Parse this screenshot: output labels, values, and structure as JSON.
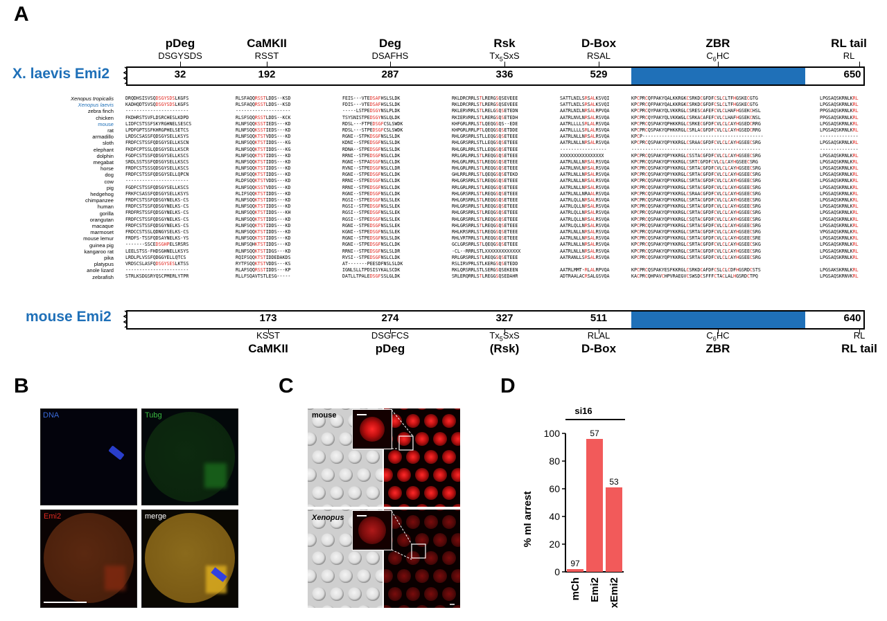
{
  "panels": {
    "a": "A",
    "b": "B",
    "c": "C",
    "d": "D"
  },
  "top_protein": {
    "label": "X. laevis Emi2",
    "domains": [
      {
        "name": "pDeg",
        "motif": "DSGYSDS",
        "pos": "32"
      },
      {
        "name": "CaMKII",
        "motif": "RSST",
        "pos": "192"
      },
      {
        "name": "Deg",
        "motif": "DSAFHS",
        "pos": "287"
      },
      {
        "name": "Rsk",
        "motif": "Tx5SxS",
        "pos": "336"
      },
      {
        "name": "D-Box",
        "motif": "RSAL",
        "pos": "529"
      },
      {
        "name": "ZBR",
        "motif": "C6HC",
        "pos": ""
      },
      {
        "name": "RL tail",
        "motif": "RL",
        "pos": "650"
      }
    ]
  },
  "bottom_protein": {
    "label": "mouse Emi2",
    "domains": [
      {
        "name": "CaMKII",
        "motif": "KSST",
        "pos": "173"
      },
      {
        "name": "pDeg",
        "motif": "DSGFCS",
        "pos": "274"
      },
      {
        "name": "(Rsk)",
        "motif": "Tx5SxS",
        "pos": "327"
      },
      {
        "name": "D-Box",
        "motif": "RLAL",
        "pos": "511"
      },
      {
        "name": "ZBR",
        "motif": "C6HC",
        "pos": ""
      },
      {
        "name": "RL tail",
        "motif": "RL",
        "pos": "640"
      }
    ]
  },
  "alignment": {
    "species": [
      "Xenopus tropicalis",
      "Xenopus laevis",
      "zebra finch",
      "chicken",
      "mouse",
      "rat",
      "armadillo",
      "sloth",
      "elephant",
      "dolphin",
      "megabat",
      "horse",
      "dog",
      "cow",
      "pig",
      "hedgehog",
      "chimpanzee",
      "human",
      "gorilla",
      "orangutan",
      "macaque",
      "marmoset",
      "mouse lemur",
      "guinea pig",
      "kangaroo rat",
      "pika",
      "platypus",
      "anole lizard",
      "zebrafish"
    ],
    "blocks": [
      [
        "DRQDHSISVSQDSGYSDSLKGFS",
        "KADHQDTSVSQDSGYSDSLKGFS",
        "-----------------------",
        "FKDHRSTSVFLDSRCHESLKDPD",
        "LIDFCSTSSFSKYRGHNELSESCS",
        "LPDFGPTSSFKHRGPHELSETCS",
        "LRDSCSASSFQDSGYSELLKSYS",
        "FRDFCSTSSFQDSGYSELLKSCN",
        "FKDFCPTSSLQDSGYSELLKSCR",
        "FGDFCSTSSFQDSGYSELLKSCS",
        "SRDLSSTSSFQDSGYSELLKSCS",
        "FRDFCSTSSSQDSGYSELLKSCS",
        "FRDFCSTSSFQDSGYSELLQPCN",
        "-----------------------",
        "FGDFCSTSSFQDSGYSELLKSCS",
        "FRKFCSASSFQDSGYSELLKSYS",
        "FRDFCSTSSFQDSGYNELKS-CS",
        "FRDFCSTSSFQDSGYNELKS-CS",
        "FRDFRSTSSFQDSGYNELKS-CS",
        "FRDFCSTSSFQDSGYNELKS-CS",
        "FRDFCSTSSFQDSGYNELKS-CS",
        "FRDCCSTSSLQDNGYSELKS-CS",
        "FRDFS-TSSFQDSAYNELKS-YS",
        "-------SSCEDSGHPELSRSRS",
        "LEELSTSS-FHDSGHNELLKSYS",
        "LRDLPLVSSFQDGGYELLQTCS",
        "VRDSCSLASFQDSGYSESLKTSS",
        "-----------------------",
        "STRLKSDGSRYQSCPMERLYTPR"
      ],
      [
        "RLSFAQQRSSTLDDS--KSD",
        "RLSFAQQRSSTLDDS--KSD",
        "-------------------- ",
        "RLSFSQQRSSTLDDS--KCK",
        "RLNFSQQKSSTIEDS---KD",
        "RLNFSQQKSSTIEDS---KD",
        "RLNFSQQKTSTVDDS---KD",
        "RLNFSQQKTSTIDDS---KG",
        "RLNFSQQKTSTIDDS---KG",
        "RLNFSQQKTSTIDDS---KD",
        "RLNFSQQKTSTIDDS---KD",
        "RLNFSQQKTSTIDDS---KD",
        "RLNFSQQKTSTIDDS---KD",
        "RLDFSQQKTSTVDDS---KD",
        "RLNFSQQKSSTVDDS---KD",
        "RLIFSQQKTSTIDDS---KD",
        "RLNFSQQKTSTIDDS---KD",
        "RLNFSQQKTSTIDDS---KD",
        "RLNFSQQKTSTIDDS---KH",
        "RLNFSQQKTSTIDDS---KD",
        "RLNFSQQKTSTIDDS---KD",
        "RLNFSQQKTSTIDDS---KD",
        "RLNFSQQKTSTIDDS---KD",
        "RLNFSQHKTSTIDDS---KD",
        "RLNFSQQKTSTIDGS---KD",
        "RQIFSQQKTSTIDDEDAKDS",
        "RYTFSQQKTSTVDDS---KS",
        "RLAFSQQRSSTIDDS---KP",
        "RLLFSQAVTSTLESG-----"
      ],
      [
        "FEIS---VTEDSAFHSLSLDK",
        "FDIS---VTEDSAFHSLSLDK",
        "-----LSTPEDSGYNSLPLDK",
        "TSYSNISTPEDSGYNSLQLDK",
        "RDSL---FTPEDSGFCSLSWDK",
        "RDSL---STPEDSGFCSLSWDK",
        "RGNI--STPKDSGFNSLSLDK",
        "KDNI--STPEDSGFNSLSLDK",
        "RDNA--STPEDSGFNSLSLDK",
        "RRNI--STPEDSGFNSLCLDK",
        "RGNI--STPADSGFNSLCLDK",
        "RVNI--STPEDSGFNSLCLDR",
        "RGNI--STPEDSGFNSLCLDK",
        "RRNI--STPEDSGFNSLCLDK",
        "RRNI--STPEDSGFNSLCLDK",
        "RGNI--STPEDSGFNSLCLDK",
        "RGSI--STPEDSGFNSLSLEK",
        "RGSI--STPEDSGFNSLSLEK",
        "RGSI--STPEDSGFNSLSLEK",
        "RGSI--STPEDSGFNSLSLEK",
        "RGNI--STPEDSGFNSLSLEK",
        "KGNI--STPEDSGFNSLSLEK",
        "RGNI--STPEDSGFNSLSLDK",
        "RGNI--STPEDSGFNSLCLDK",
        "RRNI--STPEDSGFNSLSLDR",
        "RVSI--STPEDSGFNSLCLDK",
        "AT-------PEESDFNSLSLDK",
        "IGNLSLLTPDSISYKALSCDK",
        "DATLLTPALEDSGFSSLGLDK"
      ],
      [
        "RKLDRCRRLSTLRERGSQSEVEEE",
        "RKLDRCRRLSTLRERGSQSEVEEE",
        "RKLERVRRLSTLRELGSQSETEDN",
        "RKIERVRRLSTLRERGSQSETEDH",
        "KHFGRLRRLSTLQEQGSQS--EDE",
        "KHPGRLRRLPTLQEQGSQSETDDE",
        "RHLGRSRRLSTLLEQGSQSETEEE",
        "RHLGRSRRLSTLLEQGSQSETEEE",
        "RHLGRLRRLSTLLEQGSQSETEEE",
        "RRLGRLRRLSTLREQGSQSETEEE",
        "RHLGRLRRLSTLREQGSQSETEEE",
        "RHLGRLRRLSTLREQGSQSETEEE",
        "GHLRRLRRLSTLQEQGSQSETEKD",
        "RHLGRSRRLSTLREQGSQSETEEE",
        "RRLGRLRRLSTLREQGSQSETEEE",
        "RHLGRSRRLSTLREQGSQSETEEE",
        "RHLGRSRRLSTLREQGSQSETEEE",
        "RHLGRSRRLSTLREQGSQSETEEE",
        "RHLGRSRRLSTLREQGSQSETEEE",
        "RHLGRSRRLSTLREQGSQSETEEE",
        "RHLGRSRRLSTLREQGSQSETEEE",
        "RHLKRSRRLSTLREQGSQSETEEE",
        "RHLVRTRRLSTLREQGSQSETEEE",
        "GCLGRSRRLSTLQEQGSQSETEEE",
        "-CL--RRRLSTLXXXXXXXXXXXXX",
        "RRLGRSRRLSTLREQGSQSETEEE",
        "RSLIRVPRLSTLKERGSQSETEDD",
        "RKLQRSRRLSTLSERGSQSEKEEN",
        "SRLERQRRLSTLREGGSQSEDAHR"
      ],
      [
        "SATTLNILSRSALKSVQI",
        "SATTLNILSRSALKSVQI",
        "AATRLNILNRSALRPVQA",
        "AATRLNVLNRSALRSVQA",
        "AATRLLLLSRLALRSVQA",
        "AATRLLLLSRLALRSVQA",
        "AATRLNLLNRSALRSVQA",
        "AATRLNLLNRSALRSVQA",
        "-----------------",
        "XXXXXXXXXXXXXXXX",
        "AATRLNLLNRSALRSVQA",
        "AATRLNVLNRSALRSVQA",
        "AATRLNLLNRSALRSVQA",
        "AATRLNLLNRSALRSVQA",
        "AATRLNLLNRSALRSVQA",
        "AATRLNLLNRAALRSVQA",
        "AATRLQLLNRSALRSVQA",
        "AATRLQLLNRSALRSVQA",
        "AATRLQLLNRSALRSVQA",
        "AATRLQLLNRSALRSVQA",
        "AATRLQLLNRSALRSVQA",
        "AATRLNLLNRSALRSVQA",
        "AATRLNLLNRSALRSVQA",
        "AATRLNLLNRSALRSVQA",
        "AATRLNLLNRSALRSVQA",
        "AATRANLLSRSALRSVQA",
        "",
        "AATRLMMT-RLALRPVQA",
        "ADTRAALACRSALGSVQA"
      ],
      [
        "KPCPRCQFPAKYQALKKRGKCSRKDCGFDFCSLCLTFHGSKECGTG",
        "KPCPRCQFPAKYQALKKRGKCSRKDCGFDFCSLCLTFHGSKECGTG",
        "KPCPRCQYPAKYQLVKKRGLCSRESCAFEFCVLCLHAFHGSEKCHSL",
        "KPCPRCQYPAKYQLVKKWGLCSRKACAFEFCVLCLHAFHGSEKCNSL",
        "KPCPRCQSPAKYQPHKKRGLCSRKECGFDFCVLCLCAYHGSEDCRRG",
        "KPCPRCQSPAKYQPHKKRGLCSRLACGFDFCVLCLCAYHGSEDCRRG",
        "KPCP--------------------------------------------",
        "KPCPRCQSPAKYQPYKKRGLCSRAACGFDFCVLCLCAYHGSEECSRG",
        "-----------------------------------------------",
        "KPCPRCQSPAKYQPYKKRGLCSSTACGFDFCVLCLCAYHGSEECSRG",
        "KPCPRCQSPAKYQPYKKRGLCSRTCGFDFCVLCLCAYHGSEECSRG",
        "KPCPRCQSPAKYQPYKKRGLCSRTACGFDFCVLCLCAYHGSEECSRG",
        "KPCPRCQSPAKYQPYKKRGLCSRTACGFDFCVLCLCAYHGSEECSRG",
        "KPCPRCQSPAKYQPYKKRGLCSRTACGFDFCVLCLCAYHGSEECSRG",
        "KPCPRCQSPAKYQPYKKRGLCSRTACGFDFCVLCLCAYHGSEECSRG",
        "KPCPRCQSPAKYQPYKKRGLCSRAACGFDFCVLCLCAYHGSEECSRG",
        "KPCPRCQSPAKYQPYKKRGLCSRTACGFDFCVLCLCAYHGSEECSRG",
        "KPCPRCQSPAKYQPYKKRGLCSRTACGFDFCVLCLCAYHGSEECSRG",
        "KPCPRCQSPAKYQPYKKRGLCSRTACGFDFCVLCLCAYHGSEECSRG",
        "KPCPRCQSPAKYQPYKKRGLCSQTACGFDFCVLCLCAYHGSEECSRG",
        "KPCPRCQSPAKYQPYKKRGLCSRTACGFDFCVLCLCAYHGSEECSRG",
        "KPCPRCQSPAKYQPYKKRGLCSRTACGFDFCVLCLCAYHGSEECSRG",
        "KPCPRCQSPAKYQPYKKRGLCSRTACGFDFCVLCLCAYHGSEECSRE",
        "KPCPRCQSPAKYQPYKKRGLCSRTACGFDFCVLCLCAYHGSEECSKG",
        "KPCPRCQSPAKYQPYKKRGLCSRTACGFDFCVLCLCAYHGSEECSRG",
        "KPCPRCQSPAKYQPYKKRGLCSRTACGFDFCVLCLCAYHGSEECSRG",
        "",
        "KPCPRCQSPAKYESFKKRGLCSRKDCAFDFCSLCLCDFHGSRDCSTS",
        "KACPRCQHPAVCHPVRAEGVCSWSDCSFFFCTACLALHGSRDCTPQ"
      ],
      [
        "LPGSAQSKRNLKRL",
        "LPGSAQSKRNLKRL",
        "PPGSAQSKRNLKRL",
        "PPGSAQSKRNLKRL",
        "LPGSAQSKRNLKRL",
        "LPGSAQSKRNLKRL",
        "--------------",
        "LPGSAQSKRNLKRL",
        "--------------",
        "LPGSAQSKRNLKRL",
        "LPGSAQSKRNLKRL",
        "LPGSAQSKRNLKRL",
        "LPGSAQSKRNLKRL",
        "LPGSAQSKRNLKRL",
        "LPGSAQSKRNLKRL",
        "LPGSAQSKRNLKRL",
        "LPGSAQSKRNLKRL",
        "LPGSAQSKRNLKRL",
        "LPGSAQSKRNLKRL",
        "LPGSAQSKRNLKRL",
        "LPGSAQSKRNLKRL",
        "VPGSAQSKRNLKRL",
        "LPGSAQSKRNLKRL",
        "LPGSAQSKRNLKRL",
        "LPGSAQSKRNLKRL",
        "LPGSAQSKRNLKRL",
        "",
        "LPGSAKSKRNLKRL",
        "LPGSAQSKRNVKRL"
      ]
    ]
  },
  "panel_b": {
    "labels": [
      "DNA",
      "Tubg",
      "Emi2",
      "merge"
    ]
  },
  "panel_c": {
    "labels": [
      "mouse",
      "Xenopus"
    ]
  },
  "chart_data": {
    "type": "bar",
    "title": "si16",
    "categories": [
      "mCh",
      "Emi2",
      "xEmi2"
    ],
    "values": [
      2,
      96,
      61
    ],
    "labels": [
      "97",
      "57",
      "53"
    ],
    "ylabel": "% mI arrest",
    "ylim": [
      0,
      100
    ],
    "yticks": [
      "0",
      "20",
      "40",
      "60",
      "80",
      "100"
    ],
    "color": "#f25a5a"
  }
}
